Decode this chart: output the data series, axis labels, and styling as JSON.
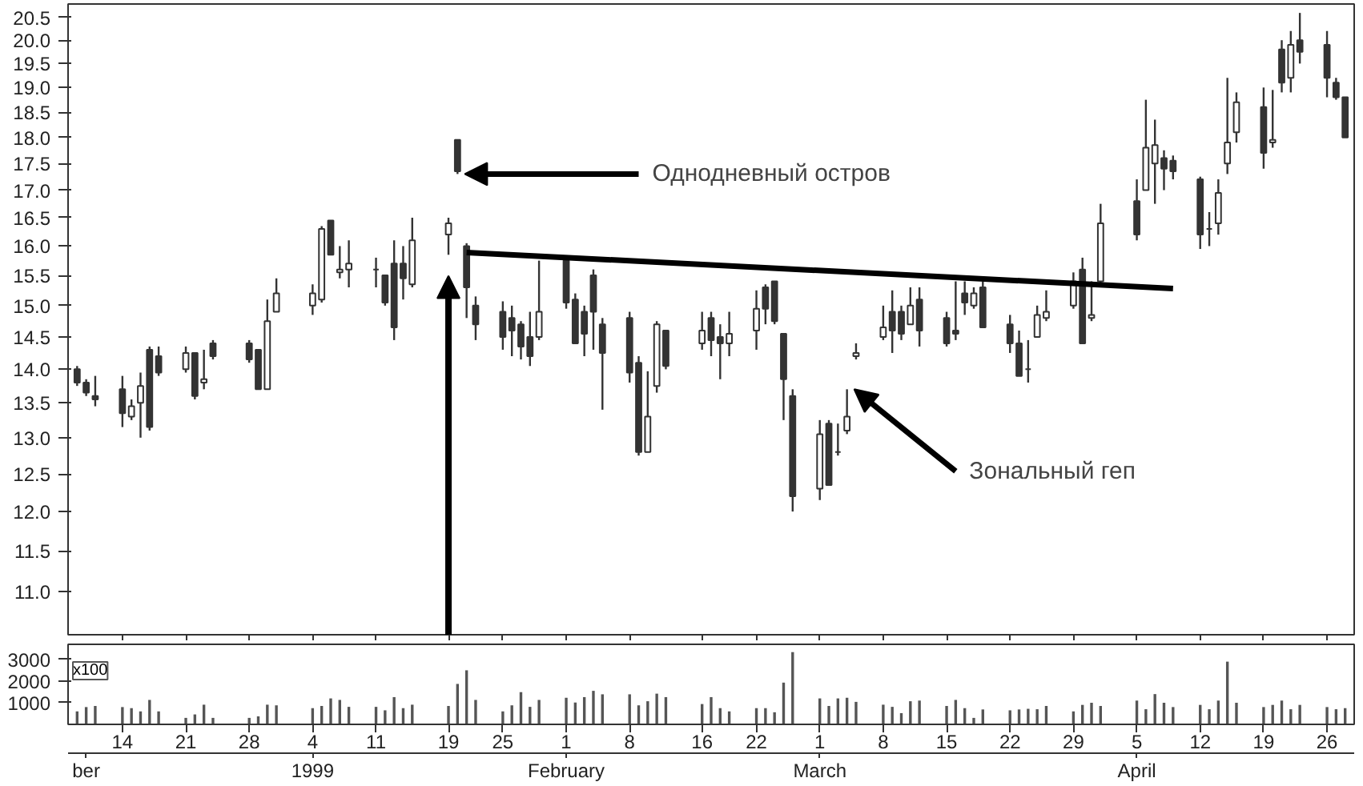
{
  "chart_data": [
    {
      "type": "candlestick",
      "color": "#333333",
      "log": "y",
      "tick_labels": "y",
      "x": [
        "1998-12-09",
        "1998-12-10",
        "1998-12-11",
        "1998-12-14",
        "1998-12-15",
        "1998-12-16",
        "1998-12-17",
        "1998-12-18",
        "1998-12-21",
        "1998-12-22",
        "1998-12-23",
        "1998-12-24",
        "1998-12-28",
        "1998-12-29",
        "1998-12-30",
        "1998-12-31",
        "1999-01-04",
        "1999-01-05",
        "1999-01-06",
        "1999-01-07",
        "1999-01-08",
        "1999-01-11",
        "1999-01-12",
        "1999-01-13",
        "1999-01-14",
        "1999-01-15",
        "1999-01-19",
        "1999-01-20",
        "1999-01-21",
        "1999-01-22",
        "1999-01-25",
        "1999-01-26",
        "1999-01-27",
        "1999-01-28",
        "1999-01-29",
        "1999-02-01",
        "1999-02-02",
        "1999-02-03",
        "1999-02-04",
        "1999-02-05",
        "1999-02-08",
        "1999-02-09",
        "1999-02-10",
        "1999-02-11",
        "1999-02-12",
        "1999-02-16",
        "1999-02-17",
        "1999-02-18",
        "1999-02-19",
        "1999-02-22",
        "1999-02-23",
        "1999-02-24",
        "1999-02-25",
        "1999-02-26",
        "1999-03-01",
        "1999-03-02",
        "1999-03-03",
        "1999-03-04",
        "1999-03-05",
        "1999-03-08",
        "1999-03-09",
        "1999-03-10",
        "1999-03-11",
        "1999-03-12",
        "1999-03-15",
        "1999-03-16",
        "1999-03-17",
        "1999-03-18",
        "1999-03-19",
        "1999-03-22",
        "1999-03-23",
        "1999-03-24",
        "1999-03-25",
        "1999-03-26",
        "1999-03-29",
        "1999-03-30",
        "1999-03-31",
        "1999-04-01",
        "1999-04-05",
        "1999-04-06",
        "1999-04-07",
        "1999-04-08",
        "1999-04-09",
        "1999-04-12",
        "1999-04-13",
        "1999-04-14",
        "1999-04-15",
        "1999-04-16",
        "1999-04-19",
        "1999-04-20",
        "1999-04-21",
        "1999-04-22",
        "1999-04-23",
        "1999-04-26",
        "1999-04-27",
        "1999-04-28"
      ],
      "ohlc": [
        [
          14.0,
          14.05,
          13.75,
          13.8
        ],
        [
          13.8,
          13.85,
          13.6,
          13.65
        ],
        [
          13.6,
          13.9,
          13.45,
          13.55
        ],
        [
          13.7,
          13.9,
          13.15,
          13.35
        ],
        [
          13.3,
          13.55,
          13.25,
          13.45
        ],
        [
          13.5,
          13.95,
          13.0,
          13.75
        ],
        [
          14.3,
          14.35,
          13.1,
          13.15
        ],
        [
          14.2,
          14.35,
          13.9,
          13.95
        ],
        [
          14.0,
          14.35,
          13.95,
          14.25
        ],
        [
          14.25,
          14.25,
          13.55,
          13.6
        ],
        [
          13.8,
          14.3,
          13.7,
          13.85
        ],
        [
          14.4,
          14.45,
          14.15,
          14.2
        ],
        [
          14.4,
          14.45,
          14.1,
          14.15
        ],
        [
          14.3,
          14.3,
          13.7,
          13.7
        ],
        [
          13.7,
          15.1,
          13.7,
          14.75
        ],
        [
          14.9,
          15.45,
          14.9,
          15.2
        ],
        [
          15.0,
          15.35,
          14.85,
          15.2
        ],
        [
          15.1,
          16.35,
          15.05,
          16.3
        ],
        [
          16.45,
          16.45,
          15.85,
          15.85
        ],
        [
          15.55,
          16.0,
          15.45,
          15.6
        ],
        [
          15.6,
          16.1,
          15.3,
          15.7
        ],
        [
          15.6,
          15.8,
          15.3,
          15.6
        ],
        [
          15.5,
          15.5,
          15.0,
          15.05
        ],
        [
          15.7,
          16.1,
          14.45,
          14.65
        ],
        [
          15.7,
          16.0,
          15.1,
          15.45
        ],
        [
          15.35,
          16.5,
          15.3,
          16.1
        ],
        [
          16.2,
          16.5,
          15.85,
          16.4
        ],
        [
          17.95,
          17.95,
          17.3,
          17.35
        ],
        [
          16.0,
          16.05,
          14.8,
          15.3
        ],
        [
          15.0,
          15.15,
          14.45,
          14.7
        ],
        [
          14.9,
          15.07,
          14.3,
          14.5
        ],
        [
          14.8,
          15.0,
          14.2,
          14.6
        ],
        [
          14.7,
          14.75,
          14.15,
          14.35
        ],
        [
          14.5,
          14.9,
          14.05,
          14.2
        ],
        [
          14.5,
          15.75,
          14.45,
          14.9
        ],
        [
          15.75,
          15.75,
          14.95,
          15.05
        ],
        [
          15.1,
          15.2,
          14.4,
          14.4
        ],
        [
          14.9,
          15.0,
          14.2,
          14.55
        ],
        [
          15.5,
          15.6,
          14.3,
          14.9
        ],
        [
          14.7,
          14.8,
          13.4,
          14.25
        ],
        [
          14.8,
          14.9,
          13.8,
          13.95
        ],
        [
          14.1,
          14.2,
          12.75,
          12.8
        ],
        [
          12.8,
          13.97,
          12.8,
          13.3
        ],
        [
          13.75,
          14.75,
          13.65,
          14.7
        ],
        [
          14.6,
          14.6,
          14.0,
          14.05
        ],
        [
          14.4,
          14.9,
          14.3,
          14.6
        ],
        [
          14.8,
          14.9,
          14.2,
          14.45
        ],
        [
          14.5,
          14.7,
          13.85,
          14.4
        ],
        [
          14.4,
          14.9,
          14.2,
          14.55
        ],
        [
          14.6,
          15.25,
          14.3,
          14.95
        ],
        [
          15.3,
          15.35,
          14.7,
          14.95
        ],
        [
          15.4,
          15.4,
          14.7,
          14.75
        ],
        [
          14.55,
          14.55,
          13.25,
          13.85
        ],
        [
          13.6,
          13.7,
          12.0,
          12.2
        ],
        [
          12.3,
          13.25,
          12.15,
          13.05
        ],
        [
          13.2,
          13.25,
          12.35,
          12.35
        ],
        [
          12.8,
          13.2,
          12.75,
          12.8
        ],
        [
          13.1,
          13.7,
          13.05,
          13.3
        ],
        [
          14.2,
          14.4,
          14.15,
          14.25
        ],
        [
          14.5,
          15.0,
          14.45,
          14.65
        ],
        [
          14.9,
          15.25,
          14.25,
          14.6
        ],
        [
          14.9,
          15.0,
          14.45,
          14.55
        ],
        [
          14.7,
          15.3,
          14.7,
          15.0
        ],
        [
          15.1,
          15.3,
          14.35,
          14.6
        ],
        [
          14.8,
          14.9,
          14.35,
          14.4
        ],
        [
          14.6,
          15.4,
          14.45,
          14.55
        ],
        [
          15.2,
          15.4,
          14.85,
          15.05
        ],
        [
          15.0,
          15.3,
          14.95,
          15.2
        ],
        [
          15.3,
          15.4,
          14.65,
          14.65
        ],
        [
          14.7,
          14.85,
          14.25,
          14.4
        ],
        [
          14.4,
          14.6,
          13.9,
          13.9
        ],
        [
          14.0,
          14.45,
          13.8,
          14.0
        ],
        [
          14.5,
          15.0,
          14.5,
          14.85
        ],
        [
          14.8,
          15.25,
          14.75,
          14.9
        ],
        [
          15.0,
          15.55,
          14.95,
          15.4
        ],
        [
          15.6,
          15.8,
          14.4,
          14.4
        ],
        [
          14.8,
          15.4,
          14.75,
          14.85
        ],
        [
          15.4,
          16.75,
          15.35,
          16.4
        ],
        [
          16.8,
          17.2,
          16.1,
          16.2
        ],
        [
          17.0,
          18.75,
          17.0,
          17.8
        ],
        [
          17.5,
          18.35,
          16.75,
          17.85
        ],
        [
          17.6,
          17.75,
          17.0,
          17.4
        ],
        [
          17.55,
          17.65,
          17.2,
          17.35
        ],
        [
          17.2,
          17.25,
          15.95,
          16.2
        ],
        [
          16.3,
          16.6,
          16.0,
          16.3
        ],
        [
          16.4,
          17.2,
          16.2,
          16.95
        ],
        [
          17.5,
          19.2,
          17.3,
          17.9
        ],
        [
          18.1,
          18.9,
          17.9,
          18.7
        ],
        [
          18.6,
          19.0,
          17.4,
          17.7
        ],
        [
          17.9,
          18.95,
          17.8,
          17.95
        ],
        [
          19.8,
          20.0,
          18.9,
          19.1
        ],
        [
          19.2,
          20.2,
          18.9,
          19.9
        ],
        [
          20.0,
          20.6,
          19.5,
          19.75
        ],
        [
          19.9,
          20.2,
          18.8,
          19.2
        ],
        [
          19.1,
          19.2,
          18.75,
          18.8
        ],
        [
          18.8,
          18.8,
          18.0,
          18.0
        ]
      ],
      "series": [
        {
          "type": "line",
          "color": "#000000",
          "x": [
            "1999-01-21",
            "1999-04-09"
          ],
          "values": [
            15.89,
            15.28
          ]
        }
      ],
      "xlim": [
        "1998-12-08",
        "1999-04-29"
      ],
      "ylim": [
        10.5,
        20.8
      ],
      "xticks": [
        {
          "value": "1998-12-14",
          "label": null
        },
        {
          "value": "1998-12-21",
          "label": null
        },
        {
          "value": "1998-12-28",
          "label": null
        },
        {
          "value": "1999-01-04",
          "label": null
        },
        {
          "value": "1999-01-11",
          "label": null
        },
        {
          "value": "1999-01-19",
          "label": null
        },
        {
          "value": "1999-01-25",
          "label": null
        },
        {
          "value": "1999-02-01",
          "label": null
        },
        {
          "value": "1999-02-08",
          "label": null
        },
        {
          "value": "1999-02-16",
          "label": null
        },
        {
          "value": "1999-02-22",
          "label": null
        },
        {
          "value": "1999-03-01",
          "label": null
        },
        {
          "value": "1999-03-08",
          "label": null
        },
        {
          "value": "1999-03-15",
          "label": null
        },
        {
          "value": "1999-03-22",
          "label": null
        },
        {
          "value": "1999-03-29",
          "label": null
        },
        {
          "value": "1999-04-05",
          "label": null
        },
        {
          "value": "1999-04-12",
          "label": null
        },
        {
          "value": "1999-04-19",
          "label": null
        },
        {
          "value": "1999-04-26",
          "label": null
        }
      ],
      "yticks": [
        {
          "value": 11,
          "label": "11.0"
        },
        11.5,
        {
          "value": 12,
          "label": "12.0"
        },
        12.5,
        {
          "value": 13,
          "label": "13.0"
        },
        13.5,
        {
          "value": 14,
          "label": "14.0"
        },
        14.5,
        {
          "value": 15,
          "label": "15.0"
        },
        15.5,
        {
          "value": 16,
          "label": "16.0"
        },
        16.5,
        {
          "value": 17,
          "label": "17.0"
        },
        17.5,
        {
          "value": 18,
          "label": "18.0"
        },
        18.5,
        {
          "value": 19,
          "label": "19.0"
        },
        19.5,
        {
          "value": 20,
          "label": "20.0"
        },
        20.5
      ],
      "annotations": [
        {
          "text": "Однодневный остров",
          "x": "1999-01-20",
          "y": 17.3
        },
        {
          "text": "Зональный геп",
          "x": "1999-03-04",
          "y": 13.7
        }
      ]
    },
    {
      "type": "bar",
      "color": "#555555",
      "x": [
        "1998-12-09",
        "1998-12-10",
        "1998-12-11",
        "1998-12-14",
        "1998-12-15",
        "1998-12-16",
        "1998-12-17",
        "1998-12-18",
        "1998-12-21",
        "1998-12-22",
        "1998-12-23",
        "1998-12-24",
        "1998-12-28",
        "1998-12-29",
        "1998-12-30",
        "1998-12-31",
        "1999-01-04",
        "1999-01-05",
        "1999-01-06",
        "1999-01-07",
        "1999-01-08",
        "1999-01-11",
        "1999-01-12",
        "1999-01-13",
        "1999-01-14",
        "1999-01-15",
        "1999-01-19",
        "1999-01-20",
        "1999-01-21",
        "1999-01-22",
        "1999-01-25",
        "1999-01-26",
        "1999-01-27",
        "1999-01-28",
        "1999-01-29",
        "1999-02-01",
        "1999-02-02",
        "1999-02-03",
        "1999-02-04",
        "1999-02-05",
        "1999-02-08",
        "1999-02-09",
        "1999-02-10",
        "1999-02-11",
        "1999-02-12",
        "1999-02-16",
        "1999-02-17",
        "1999-02-18",
        "1999-02-19",
        "1999-02-22",
        "1999-02-23",
        "1999-02-24",
        "1999-02-25",
        "1999-02-26",
        "1999-03-01",
        "1999-03-02",
        "1999-03-03",
        "1999-03-04",
        "1999-03-05",
        "1999-03-08",
        "1999-03-09",
        "1999-03-10",
        "1999-03-11",
        "1999-03-12",
        "1999-03-15",
        "1999-03-16",
        "1999-03-17",
        "1999-03-18",
        "1999-03-19",
        "1999-03-22",
        "1999-03-23",
        "1999-03-24",
        "1999-03-25",
        "1999-03-26",
        "1999-03-29",
        "1999-03-30",
        "1999-03-31",
        "1999-04-01",
        "1999-04-05",
        "1999-04-06",
        "1999-04-07",
        "1999-04-08",
        "1999-04-09",
        "1999-04-12",
        "1999-04-13",
        "1999-04-14",
        "1999-04-15",
        "1999-04-16",
        "1999-04-19",
        "1999-04-20",
        "1999-04-21",
        "1999-04-22",
        "1999-04-23",
        "1999-04-26",
        "1999-04-27",
        "1999-04-28"
      ],
      "values": [
        600,
        800,
        850,
        800,
        750,
        600,
        1130,
        600,
        300,
        460,
        910,
        300,
        300,
        370,
        910,
        880,
        750,
        850,
        1200,
        1130,
        810,
        810,
        650,
        1260,
        750,
        910,
        850,
        1870,
        2500,
        1130,
        600,
        880,
        1490,
        810,
        1130,
        1230,
        1010,
        1260,
        1550,
        1390,
        1390,
        880,
        1070,
        1420,
        1260,
        940,
        1260,
        750,
        600,
        750,
        750,
        560,
        1930,
        3340,
        1200,
        850,
        1200,
        1230,
        1040,
        910,
        810,
        520,
        1070,
        1100,
        850,
        1130,
        750,
        300,
        690,
        650,
        690,
        720,
        700,
        850,
        600,
        900,
        1000,
        850,
        1100,
        700,
        1400,
        1000,
        800,
        900,
        700,
        1100,
        2900,
        1000,
        800,
        900,
        1100,
        700,
        900,
        800,
        700,
        750
      ],
      "xlim": [
        "1998-12-08",
        "1999-04-29"
      ],
      "ylim": [
        0,
        3700
      ],
      "xticks": [
        {
          "value": "1998-12-14",
          "label": "14"
        },
        {
          "value": "1998-12-21",
          "label": "21"
        },
        {
          "value": "1998-12-28",
          "label": "28"
        },
        {
          "value": "1999-01-04",
          "label": "4"
        },
        {
          "value": "1999-01-11",
          "label": "11"
        },
        {
          "value": "1999-01-19",
          "label": "19"
        },
        {
          "value": "1999-01-25",
          "label": "25"
        },
        {
          "value": "1999-02-01",
          "label": "1"
        },
        {
          "value": "1999-02-08",
          "label": "8"
        },
        {
          "value": "1999-02-16",
          "label": "16"
        },
        {
          "value": "1999-02-22",
          "label": "22"
        },
        {
          "value": "1999-03-01",
          "label": "1"
        },
        {
          "value": "1999-03-08",
          "label": "8"
        },
        {
          "value": "1999-03-15",
          "label": "15"
        },
        {
          "value": "1999-03-22",
          "label": "22"
        },
        {
          "value": "1999-03-29",
          "label": "29"
        },
        {
          "value": "1999-04-05",
          "label": "5"
        },
        {
          "value": "1999-04-12",
          "label": "12"
        },
        {
          "value": "1999-04-19",
          "label": "19"
        },
        {
          "value": "1999-04-26",
          "label": "26"
        }
      ],
      "yticks": [
        1000,
        2000,
        3000
      ],
      "x2lim": [
        "1998-12-08",
        "1999-04-29"
      ],
      "x2ticks": [
        {
          "value": "1998-12-10",
          "label": "ber"
        },
        {
          "value": "1999-01-04",
          "label": "1999"
        },
        {
          "value": "1999-02-01",
          "label": "February"
        },
        {
          "value": "1999-03-01",
          "label": "March"
        },
        {
          "value": "1999-04-05",
          "label": "April"
        }
      ],
      "annotations": [
        "x100"
      ]
    }
  ]
}
